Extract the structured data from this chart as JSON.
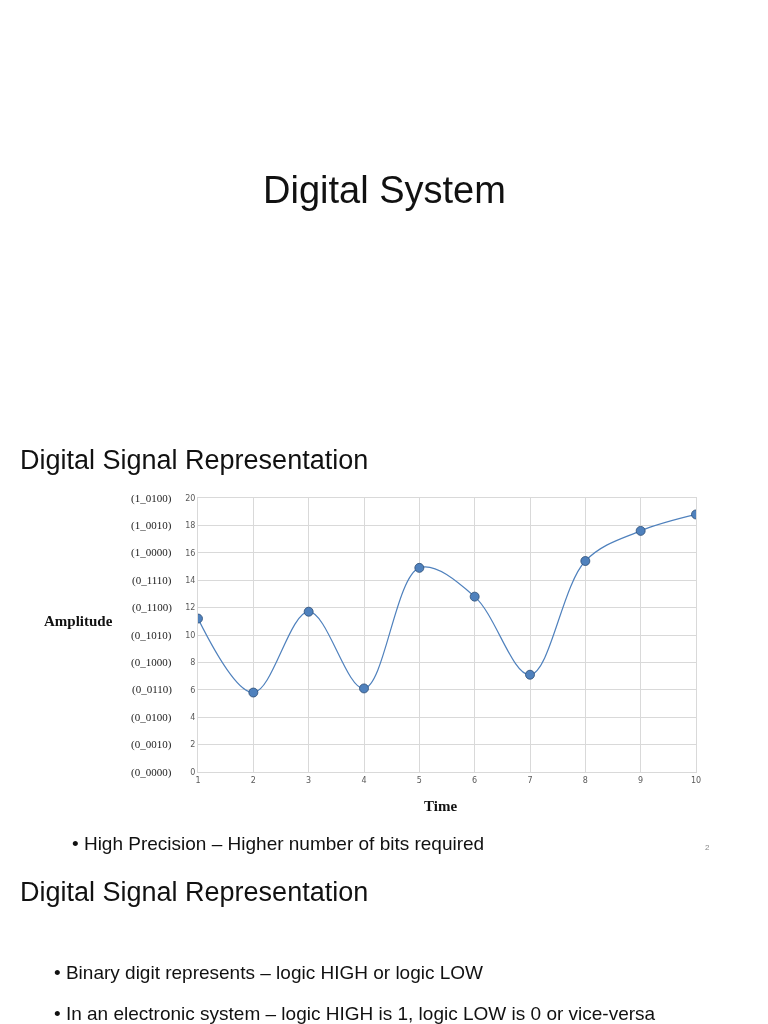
{
  "chart_data": {
    "type": "line",
    "title": "Digital System",
    "subtitle": "Digital Signal Representation",
    "xlabel": "Time",
    "ylabel": "Amplitude",
    "x": [
      1,
      2,
      3,
      4,
      5,
      6,
      7,
      8,
      9,
      10
    ],
    "series": [
      {
        "color": "#4f81bd",
        "values": [
          11.2,
          5.8,
          11.7,
          6.1,
          14.9,
          12.8,
          7.1,
          15.4,
          17.6,
          18.8
        ]
      }
    ],
    "xlim": [
      1,
      10
    ],
    "xticks": [
      1,
      2,
      3,
      4,
      5,
      6,
      7,
      8,
      9,
      10
    ],
    "ylim": [
      0,
      20
    ],
    "yticks": [
      0,
      2,
      4,
      6,
      8,
      10,
      12,
      14,
      16,
      18,
      20
    ],
    "grid": true,
    "marker": "circle",
    "line_style": "solid",
    "annotations": [
      "(0_0000)",
      "(0_0010)",
      "(0_0100)",
      "(0_0110)",
      "(0_1000)",
      "(0_1010)",
      "(0_1100)",
      "(0_1110)",
      "(1_0000)",
      "(1_0010)",
      "(1_0100)",
      "• High Precision – Higher number of bits required",
      "2",
      "Digital Signal Representation",
      "• Binary digit represents – logic HIGH or logic LOW",
      "• In an electronic system – logic HIGH is 1, logic LOW is 0 or vice-versa"
    ]
  }
}
